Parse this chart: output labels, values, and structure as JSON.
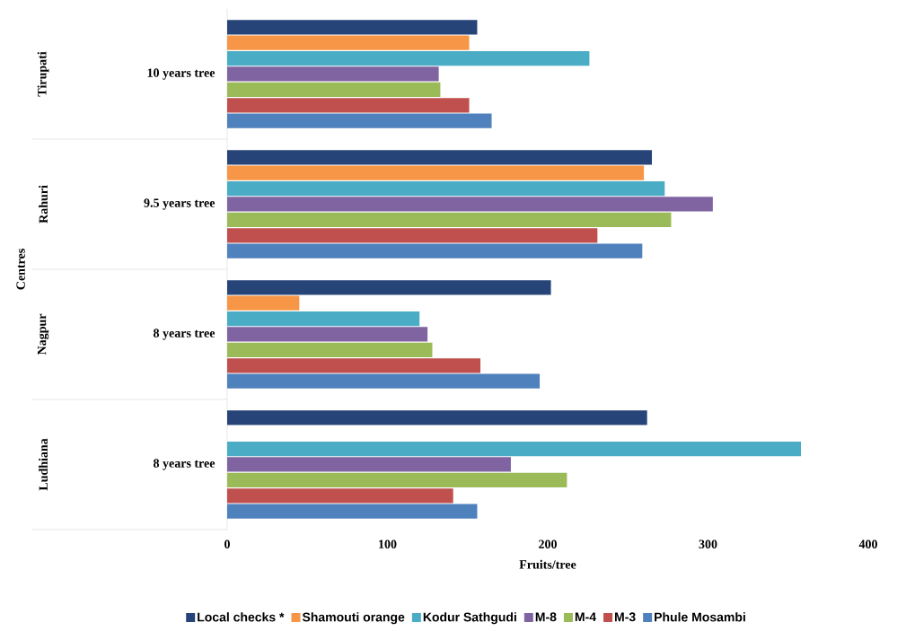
{
  "chart_data": {
    "type": "bar",
    "orientation": "horizontal",
    "categories": [
      "10 years tree",
      "9.5 years tree",
      "8 years tree",
      "8 years tree"
    ],
    "annotations": [
      "Centres",
      "Tirupati",
      "Rahuri",
      "Nagpur",
      "Ludhiana"
    ],
    "xlabel": "Fruits/tree",
    "xlim": [
      0,
      400
    ],
    "xticks": [
      0,
      100,
      200,
      300,
      400
    ],
    "legend": "bottom",
    "series": [
      {
        "name": "Local checks *",
        "color": "#264478",
        "values": [
          156,
          265,
          202,
          262
        ]
      },
      {
        "name": "Shamouti orange",
        "color": "#f79646",
        "values": [
          151,
          260,
          45,
          null
        ]
      },
      {
        "name": "Kodur Sathgudi",
        "color": "#4bacc6",
        "values": [
          226,
          273,
          120,
          358
        ]
      },
      {
        "name": "M-8",
        "color": "#8064a2",
        "values": [
          132,
          303,
          125,
          177
        ]
      },
      {
        "name": "M-4",
        "color": "#9bbb59",
        "values": [
          133,
          277,
          128,
          212
        ]
      },
      {
        "name": "M-3",
        "color": "#c0504d",
        "values": [
          151,
          231,
          158,
          141
        ]
      },
      {
        "name": "Phule Mosambi",
        "color": "#4f81bd",
        "values": [
          165,
          259,
          195,
          156
        ]
      }
    ]
  }
}
